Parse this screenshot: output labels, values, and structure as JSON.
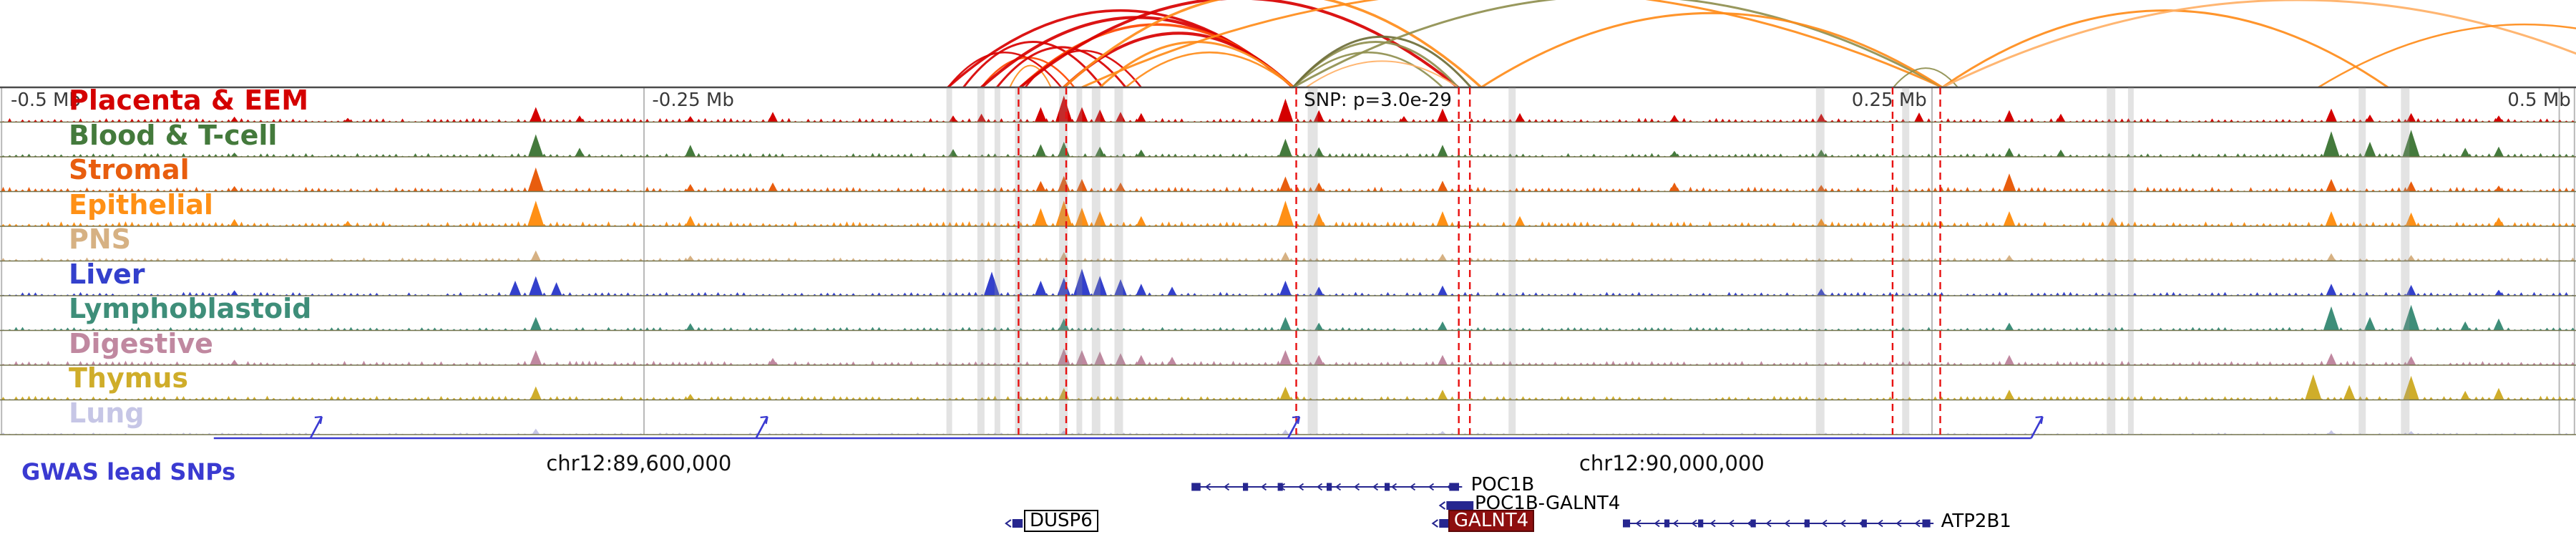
{
  "chart_data": {
    "type": "genome-browser",
    "title": "",
    "ruler": {
      "labels": [
        {
          "text": "-0.5 Mb",
          "x": 0.0025,
          "align": "left",
          "color": "#3a3a3a"
        },
        {
          "text": "-0.25 Mb",
          "x": 0.2515,
          "align": "left",
          "color": "#3a3a3a"
        },
        {
          "text": "SNP: p=3.0e-29",
          "x": 0.5045,
          "align": "left",
          "color": "#111111"
        },
        {
          "text": "0.25 Mb",
          "x": 0.748,
          "align": "right",
          "color": "#3a3a3a"
        },
        {
          "text": "0.5 Mb",
          "x": 0.998,
          "align": "right",
          "color": "#3a3a3a"
        }
      ],
      "gridlines": [
        0.0006,
        0.25,
        0.75,
        0.9935,
        0.9994
      ]
    },
    "coordinates": [
      {
        "text": "chr12:89,600,000",
        "x": 0.248
      },
      {
        "text": "chr12:90,000,000",
        "x": 0.649
      }
    ],
    "arc_colors": {
      "red": "#d80000",
      "orangered": "#ff4800",
      "orange": "#ff8c1a",
      "lightorange": "#ffb066",
      "olive": "#8f8f4f",
      "darkolive": "#6e6e38"
    },
    "arcs": [
      [
        0.368,
        0.412,
        0.4,
        "red",
        2.5
      ],
      [
        0.374,
        0.428,
        0.52,
        "red",
        3
      ],
      [
        0.381,
        0.417,
        0.34,
        "orangered",
        2.5
      ],
      [
        0.387,
        0.437,
        0.46,
        "red",
        3
      ],
      [
        0.392,
        0.408,
        0.25,
        "orange",
        2
      ],
      [
        0.398,
        0.443,
        0.42,
        "red",
        2.5
      ],
      [
        0.368,
        0.502,
        0.88,
        "red",
        3.5
      ],
      [
        0.381,
        0.502,
        0.8,
        "red",
        4
      ],
      [
        0.396,
        0.502,
        0.72,
        "orangered",
        3.5
      ],
      [
        0.413,
        0.502,
        0.62,
        "red",
        4
      ],
      [
        0.427,
        0.502,
        0.52,
        "orange",
        3
      ],
      [
        0.437,
        0.502,
        0.4,
        "orange",
        2.5
      ],
      [
        0.396,
        0.566,
        1.02,
        "red",
        4
      ],
      [
        0.413,
        0.575,
        1.08,
        "orange",
        3.5
      ],
      [
        0.42,
        0.754,
        1.12,
        "orange",
        3
      ],
      [
        0.502,
        0.56,
        0.4,
        "olive",
        2.5
      ],
      [
        0.502,
        0.566,
        0.52,
        "olive",
        3
      ],
      [
        0.502,
        0.571,
        0.58,
        "darkolive",
        3
      ],
      [
        0.507,
        0.566,
        0.3,
        "lightorange",
        2
      ],
      [
        0.502,
        0.754,
        1.05,
        "olive",
        3
      ],
      [
        0.575,
        0.754,
        0.85,
        "orange",
        3
      ],
      [
        0.735,
        0.76,
        0.22,
        "olive",
        2
      ],
      [
        0.754,
        0.927,
        0.88,
        "orange",
        3
      ],
      [
        0.754,
        1.03,
        1.0,
        "lightorange",
        3
      ],
      [
        0.9,
        1.06,
        0.72,
        "orange",
        2.5
      ]
    ],
    "snp_lines": [
      0.3954,
      0.4139,
      0.5032,
      0.5663,
      0.5706,
      0.7347,
      0.7532
    ],
    "highlights": [
      [
        0.3685,
        8
      ],
      [
        0.3808,
        10
      ],
      [
        0.3872,
        8
      ],
      [
        0.3954,
        10
      ],
      [
        0.4128,
        12
      ],
      [
        0.419,
        8
      ],
      [
        0.4255,
        12
      ],
      [
        0.4343,
        12
      ],
      [
        0.5096,
        14
      ],
      [
        0.587,
        10
      ],
      [
        0.7066,
        12
      ],
      [
        0.7398,
        10
      ],
      [
        0.8195,
        12
      ],
      [
        0.8272,
        8
      ],
      [
        0.917,
        10
      ],
      [
        0.9337,
        12
      ]
    ],
    "tracks": [
      {
        "name": "Placenta & EEM",
        "color": "#d40000",
        "noise": 0.14,
        "peaks": [
          [
            0.091,
            0.18
          ],
          [
            0.135,
            0.14
          ],
          [
            0.208,
            0.5
          ],
          [
            0.225,
            0.22
          ],
          [
            0.268,
            0.2
          ],
          [
            0.3,
            0.34
          ],
          [
            0.37,
            0.22
          ],
          [
            0.381,
            0.28
          ],
          [
            0.404,
            0.5
          ],
          [
            0.413,
            0.88
          ],
          [
            0.42,
            0.5
          ],
          [
            0.427,
            0.42
          ],
          [
            0.435,
            0.34
          ],
          [
            0.443,
            0.3
          ],
          [
            0.499,
            0.78
          ],
          [
            0.512,
            0.4
          ],
          [
            0.545,
            0.2
          ],
          [
            0.56,
            0.45
          ],
          [
            0.59,
            0.3
          ],
          [
            0.65,
            0.24
          ],
          [
            0.707,
            0.28
          ],
          [
            0.745,
            0.32
          ],
          [
            0.78,
            0.4
          ],
          [
            0.8,
            0.28
          ],
          [
            0.905,
            0.45
          ],
          [
            0.92,
            0.25
          ],
          [
            0.936,
            0.3
          ],
          [
            0.97,
            0.22
          ]
        ]
      },
      {
        "name": "Blood & T-cell",
        "color": "#447a3c",
        "noise": 0.13,
        "peaks": [
          [
            0.091,
            0.14
          ],
          [
            0.208,
            0.75
          ],
          [
            0.225,
            0.3
          ],
          [
            0.268,
            0.4
          ],
          [
            0.37,
            0.26
          ],
          [
            0.404,
            0.42
          ],
          [
            0.413,
            0.5
          ],
          [
            0.427,
            0.34
          ],
          [
            0.443,
            0.24
          ],
          [
            0.499,
            0.6
          ],
          [
            0.512,
            0.32
          ],
          [
            0.56,
            0.4
          ],
          [
            0.65,
            0.2
          ],
          [
            0.707,
            0.24
          ],
          [
            0.78,
            0.3
          ],
          [
            0.8,
            0.24
          ],
          [
            0.905,
            0.85
          ],
          [
            0.92,
            0.5
          ],
          [
            0.936,
            0.9
          ],
          [
            0.957,
            0.3
          ],
          [
            0.97,
            0.34
          ]
        ]
      },
      {
        "name": "Stromal",
        "color": "#e85d0e",
        "noise": 0.16,
        "peaks": [
          [
            0.091,
            0.18
          ],
          [
            0.208,
            0.8
          ],
          [
            0.268,
            0.25
          ],
          [
            0.3,
            0.3
          ],
          [
            0.404,
            0.35
          ],
          [
            0.413,
            0.52
          ],
          [
            0.42,
            0.42
          ],
          [
            0.435,
            0.3
          ],
          [
            0.499,
            0.5
          ],
          [
            0.512,
            0.3
          ],
          [
            0.56,
            0.36
          ],
          [
            0.65,
            0.3
          ],
          [
            0.707,
            0.22
          ],
          [
            0.78,
            0.6
          ],
          [
            0.905,
            0.42
          ],
          [
            0.936,
            0.34
          ],
          [
            0.97,
            0.2
          ]
        ]
      },
      {
        "name": "Epithelial",
        "color": "#ff9015",
        "noise": 0.17,
        "peaks": [
          [
            0.091,
            0.24
          ],
          [
            0.135,
            0.18
          ],
          [
            0.208,
            0.85
          ],
          [
            0.268,
            0.35
          ],
          [
            0.404,
            0.6
          ],
          [
            0.413,
            0.85
          ],
          [
            0.42,
            0.62
          ],
          [
            0.427,
            0.5
          ],
          [
            0.443,
            0.34
          ],
          [
            0.499,
            0.85
          ],
          [
            0.512,
            0.44
          ],
          [
            0.56,
            0.5
          ],
          [
            0.59,
            0.34
          ],
          [
            0.707,
            0.26
          ],
          [
            0.78,
            0.5
          ],
          [
            0.82,
            0.3
          ],
          [
            0.905,
            0.5
          ],
          [
            0.936,
            0.46
          ],
          [
            0.97,
            0.3
          ]
        ]
      },
      {
        "name": "PNS",
        "color": "#d6b183",
        "noise": 0.12,
        "peaks": [
          [
            0.208,
            0.35
          ],
          [
            0.268,
            0.18
          ],
          [
            0.413,
            0.3
          ],
          [
            0.499,
            0.3
          ],
          [
            0.56,
            0.24
          ],
          [
            0.78,
            0.2
          ],
          [
            0.905,
            0.26
          ],
          [
            0.936,
            0.2
          ]
        ]
      },
      {
        "name": "Liver",
        "color": "#3340cc",
        "noise": 0.13,
        "peaks": [
          [
            0.091,
            0.18
          ],
          [
            0.2,
            0.5
          ],
          [
            0.208,
            0.65
          ],
          [
            0.216,
            0.45
          ],
          [
            0.385,
            0.8
          ],
          [
            0.404,
            0.5
          ],
          [
            0.413,
            0.6
          ],
          [
            0.42,
            0.9
          ],
          [
            0.427,
            0.66
          ],
          [
            0.435,
            0.55
          ],
          [
            0.443,
            0.4
          ],
          [
            0.455,
            0.3
          ],
          [
            0.499,
            0.5
          ],
          [
            0.512,
            0.3
          ],
          [
            0.56,
            0.34
          ],
          [
            0.707,
            0.24
          ],
          [
            0.905,
            0.4
          ],
          [
            0.936,
            0.36
          ],
          [
            0.97,
            0.2
          ]
        ]
      },
      {
        "name": "Lymphoblastoid",
        "color": "#3e8e79",
        "noise": 0.12,
        "peaks": [
          [
            0.208,
            0.45
          ],
          [
            0.268,
            0.24
          ],
          [
            0.413,
            0.4
          ],
          [
            0.499,
            0.45
          ],
          [
            0.512,
            0.26
          ],
          [
            0.56,
            0.3
          ],
          [
            0.78,
            0.26
          ],
          [
            0.905,
            0.8
          ],
          [
            0.92,
            0.45
          ],
          [
            0.936,
            0.85
          ],
          [
            0.957,
            0.3
          ],
          [
            0.97,
            0.4
          ]
        ]
      },
      {
        "name": "Digestive",
        "color": "#c088a0",
        "noise": 0.15,
        "peaks": [
          [
            0.091,
            0.18
          ],
          [
            0.208,
            0.5
          ],
          [
            0.3,
            0.24
          ],
          [
            0.413,
            0.56
          ],
          [
            0.42,
            0.5
          ],
          [
            0.427,
            0.46
          ],
          [
            0.435,
            0.4
          ],
          [
            0.443,
            0.34
          ],
          [
            0.455,
            0.28
          ],
          [
            0.499,
            0.5
          ],
          [
            0.512,
            0.34
          ],
          [
            0.56,
            0.34
          ],
          [
            0.78,
            0.34
          ],
          [
            0.905,
            0.4
          ],
          [
            0.936,
            0.3
          ]
        ]
      },
      {
        "name": "Thymus",
        "color": "#cfad2a",
        "noise": 0.14,
        "peaks": [
          [
            0.208,
            0.45
          ],
          [
            0.268,
            0.2
          ],
          [
            0.413,
            0.4
          ],
          [
            0.499,
            0.44
          ],
          [
            0.56,
            0.34
          ],
          [
            0.78,
            0.34
          ],
          [
            0.898,
            0.85
          ],
          [
            0.912,
            0.5
          ],
          [
            0.936,
            0.8
          ],
          [
            0.957,
            0.3
          ],
          [
            0.97,
            0.4
          ]
        ]
      },
      {
        "name": "Lung",
        "color": "#c6c6e6",
        "noise": 0.07,
        "peaks": [
          [
            0.208,
            0.2
          ],
          [
            0.413,
            0.14
          ],
          [
            0.499,
            0.17
          ],
          [
            0.56,
            0.12
          ],
          [
            0.905,
            0.15
          ],
          [
            0.936,
            0.12
          ]
        ]
      }
    ],
    "gwas": {
      "label": "GWAS lead SNPs",
      "color": "#3a3ad1",
      "line": [
        0.083,
        0.7885
      ],
      "ticks": [
        0.1205,
        0.2935,
        0.5,
        0.7885
      ]
    },
    "genes": {
      "color": "#26268f",
      "rows": [
        {
          "items": [
            {
              "name": "POC1B",
              "type": "gene",
              "x1": 0.4643,
              "x2": 0.5676,
              "label_x": 0.571,
              "strand": "-",
              "label_style": "plain",
              "exons": [
                [
                  0.4643,
                  0.0035
                ],
                [
                  0.4835,
                  0.002
                ],
                [
                  0.497,
                  0.002
                ],
                [
                  0.516,
                  0.002
                ],
                [
                  0.5385,
                  0.002
                ],
                [
                  0.5645,
                  0.0038
                ]
              ]
            }
          ]
        },
        {
          "items": [
            {
              "name": "POC1B-GALNT4",
              "type": "compact",
              "x1": 0.559,
              "x2": 0.5695,
              "label_x": 0.5725,
              "strand": "-",
              "label_style": "plain"
            }
          ]
        },
        {
          "items": [
            {
              "name": "DUSP6",
              "type": "compact",
              "x1": 0.3905,
              "x2": 0.3945,
              "label_x": 0.3975,
              "strand": "-",
              "label_style": "boxed"
            },
            {
              "name": "GALNT4",
              "type": "compact",
              "x1": 0.5562,
              "x2": 0.56,
              "label_x": 0.5622,
              "strand": "-",
              "label_style": "filled"
            },
            {
              "name": "ATP2B1",
              "type": "gene",
              "x1": 0.6314,
              "x2": 0.7506,
              "label_x": 0.7535,
              "strand": "-",
              "label_style": "plain",
              "exons": [
                [
                  0.6314,
                  0.0028
                ],
                [
                  0.6471,
                  0.002
                ],
                [
                  0.6602,
                  0.002
                ],
                [
                  0.6806,
                  0.002
                ],
                [
                  0.7015,
                  0.002
                ],
                [
                  0.7237,
                  0.002
                ],
                [
                  0.7478,
                  0.0031
                ]
              ]
            }
          ]
        }
      ]
    }
  }
}
